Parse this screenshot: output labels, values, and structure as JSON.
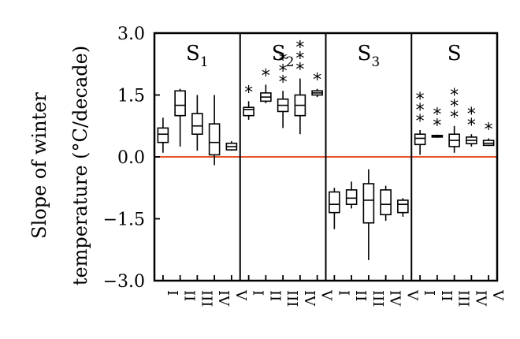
{
  "chart_data": {
    "type": "box",
    "ylabel_line1": "Slope of winter",
    "ylabel_line2": "temperature (°C/decade)",
    "ylim": [
      -3.0,
      3.0
    ],
    "yticks": [
      "3.0",
      "1.5",
      "0.0",
      "−1.5",
      "−3.0"
    ],
    "ytick_values": [
      3.0,
      1.5,
      0.0,
      -1.5,
      -3.0
    ],
    "categories": [
      "I",
      "II",
      "III",
      "IV",
      "V"
    ],
    "reference_line": {
      "y": 0.0,
      "color": "#e8532a"
    },
    "panels": [
      {
        "title": "S",
        "subscript": "1",
        "boxes": [
          {
            "category": "I",
            "min": 0.1,
            "q1": 0.35,
            "median": 0.55,
            "q3": 0.7,
            "max": 0.95,
            "stars": 0
          },
          {
            "category": "II",
            "min": 0.25,
            "q1": 1.0,
            "median": 1.25,
            "q3": 1.6,
            "max": 1.65,
            "stars": 0
          },
          {
            "category": "III",
            "min": 0.15,
            "q1": 0.55,
            "median": 0.75,
            "q3": 1.05,
            "max": 1.5,
            "stars": 0
          },
          {
            "category": "IV",
            "min": -0.2,
            "q1": 0.05,
            "median": 0.35,
            "q3": 0.8,
            "max": 1.5,
            "stars": 0
          },
          {
            "category": "V",
            "min": 0.15,
            "q1": 0.17,
            "median": 0.25,
            "q3": 0.33,
            "max": 0.38,
            "stars": 0
          }
        ]
      },
      {
        "title": "S",
        "subscript": "2",
        "boxes": [
          {
            "category": "I",
            "min": 0.9,
            "q1": 1.0,
            "median": 1.15,
            "q3": 1.2,
            "max": 1.35,
            "stars": 1
          },
          {
            "category": "II",
            "min": 1.3,
            "q1": 1.35,
            "median": 1.45,
            "q3": 1.55,
            "max": 1.75,
            "stars": 1
          },
          {
            "category": "III",
            "min": 0.7,
            "q1": 1.1,
            "median": 1.25,
            "q3": 1.4,
            "max": 1.6,
            "stars": 3
          },
          {
            "category": "IV",
            "min": 0.55,
            "q1": 1.0,
            "median": 1.25,
            "q3": 1.5,
            "max": 1.9,
            "stars": 3
          },
          {
            "category": "V",
            "min": 1.45,
            "q1": 1.5,
            "median": 1.55,
            "q3": 1.6,
            "max": 1.65,
            "stars": 1
          }
        ]
      },
      {
        "title": "S",
        "subscript": "3",
        "boxes": [
          {
            "category": "I",
            "min": -1.75,
            "q1": -1.35,
            "median": -1.15,
            "q3": -0.85,
            "max": -0.75,
            "stars": 0
          },
          {
            "category": "II",
            "min": -1.25,
            "q1": -1.15,
            "median": -1.0,
            "q3": -0.8,
            "max": -0.6,
            "stars": 0
          },
          {
            "category": "III",
            "min": -2.5,
            "q1": -1.6,
            "median": -1.05,
            "q3": -0.65,
            "max": -0.3,
            "stars": 0
          },
          {
            "category": "IV",
            "min": -1.55,
            "q1": -1.4,
            "median": -1.15,
            "q3": -0.8,
            "max": -0.7,
            "stars": 0
          },
          {
            "category": "V",
            "min": -1.45,
            "q1": -1.35,
            "median": -1.15,
            "q3": -1.05,
            "max": -1.0,
            "stars": 0
          }
        ]
      },
      {
        "title": "S",
        "subscript": "",
        "boxes": [
          {
            "category": "I",
            "min": 0.05,
            "q1": 0.3,
            "median": 0.45,
            "q3": 0.55,
            "max": 0.65,
            "stars": 3
          },
          {
            "category": "II",
            "min": 0.46,
            "q1": 0.48,
            "median": 0.5,
            "q3": 0.52,
            "max": 0.54,
            "stars": 2
          },
          {
            "category": "III",
            "min": 0.1,
            "q1": 0.25,
            "median": 0.4,
            "q3": 0.55,
            "max": 0.75,
            "stars": 3
          },
          {
            "category": "IV",
            "min": 0.25,
            "q1": 0.32,
            "median": 0.4,
            "q3": 0.48,
            "max": 0.55,
            "stars": 2
          },
          {
            "category": "V",
            "min": 0.26,
            "q1": 0.28,
            "median": 0.33,
            "q3": 0.4,
            "max": 0.45,
            "stars": 1
          }
        ]
      }
    ]
  }
}
